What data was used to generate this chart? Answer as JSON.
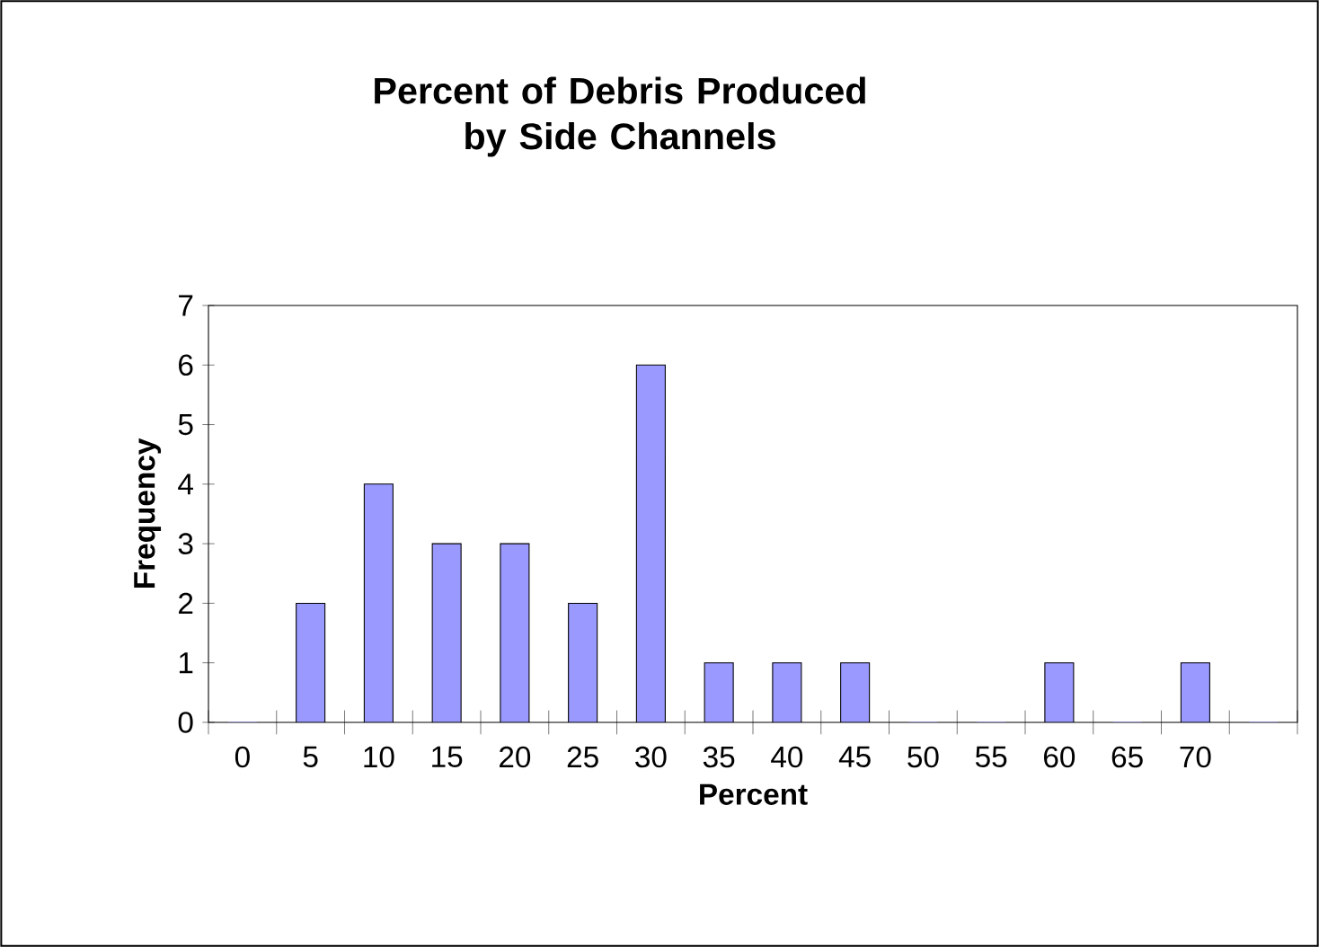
{
  "chart_data": {
    "type": "bar",
    "title": "Percent of Debris Produced by Side Channels",
    "categories": [
      "0",
      "5",
      "10",
      "15",
      "20",
      "25",
      "30",
      "35",
      "40",
      "45",
      "50",
      "55",
      "60",
      "65",
      "70",
      null
    ],
    "values": [
      0,
      2,
      4,
      3,
      3,
      2,
      6,
      1,
      1,
      1,
      0,
      0,
      1,
      0,
      1,
      0
    ],
    "color": "#9999ff",
    "xlabel": "Percent",
    "ylabel": "Frequency",
    "ylim": [
      0,
      7
    ],
    "yticks": [
      0,
      1,
      2,
      3,
      4,
      5,
      6,
      7
    ],
    "grid": false
  }
}
